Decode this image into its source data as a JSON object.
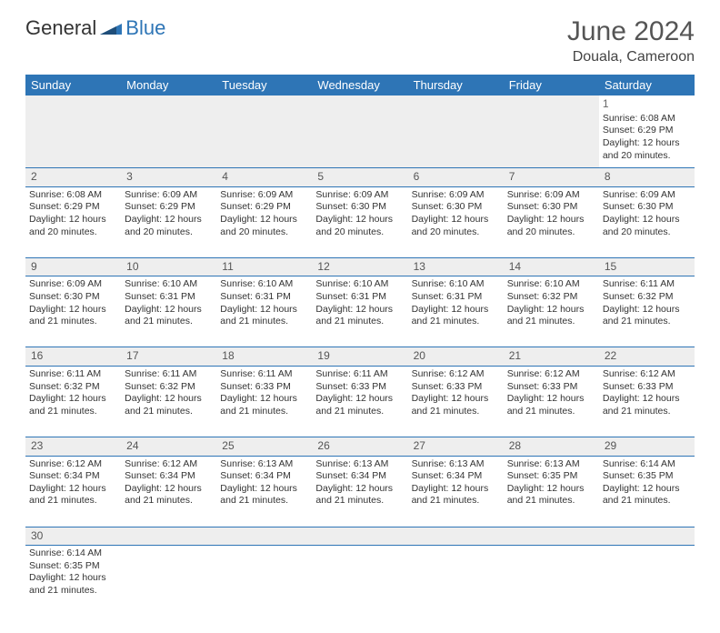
{
  "logo": {
    "text1": "General",
    "text2": "Blue"
  },
  "title": "June 2024",
  "location": "Douala, Cameroon",
  "colors": {
    "header_bg": "#2e75b6",
    "header_text": "#ffffff",
    "daynum_bg": "#eeeeee",
    "row_border": "#2e75b6",
    "title_color": "#555555",
    "body_text": "#333333"
  },
  "typography": {
    "title_fontsize": 30,
    "location_fontsize": 16,
    "weekday_fontsize": 13,
    "daynum_fontsize": 12,
    "cell_fontsize": 10.5
  },
  "weekdays": [
    "Sunday",
    "Monday",
    "Tuesday",
    "Wednesday",
    "Thursday",
    "Friday",
    "Saturday"
  ],
  "weeks": [
    [
      null,
      null,
      null,
      null,
      null,
      null,
      {
        "day": "1",
        "sunrise": "Sunrise: 6:08 AM",
        "sunset": "Sunset: 6:29 PM",
        "daylight": "Daylight: 12 hours and 20 minutes."
      }
    ],
    [
      {
        "day": "2",
        "sunrise": "Sunrise: 6:08 AM",
        "sunset": "Sunset: 6:29 PM",
        "daylight": "Daylight: 12 hours and 20 minutes."
      },
      {
        "day": "3",
        "sunrise": "Sunrise: 6:09 AM",
        "sunset": "Sunset: 6:29 PM",
        "daylight": "Daylight: 12 hours and 20 minutes."
      },
      {
        "day": "4",
        "sunrise": "Sunrise: 6:09 AM",
        "sunset": "Sunset: 6:29 PM",
        "daylight": "Daylight: 12 hours and 20 minutes."
      },
      {
        "day": "5",
        "sunrise": "Sunrise: 6:09 AM",
        "sunset": "Sunset: 6:30 PM",
        "daylight": "Daylight: 12 hours and 20 minutes."
      },
      {
        "day": "6",
        "sunrise": "Sunrise: 6:09 AM",
        "sunset": "Sunset: 6:30 PM",
        "daylight": "Daylight: 12 hours and 20 minutes."
      },
      {
        "day": "7",
        "sunrise": "Sunrise: 6:09 AM",
        "sunset": "Sunset: 6:30 PM",
        "daylight": "Daylight: 12 hours and 20 minutes."
      },
      {
        "day": "8",
        "sunrise": "Sunrise: 6:09 AM",
        "sunset": "Sunset: 6:30 PM",
        "daylight": "Daylight: 12 hours and 20 minutes."
      }
    ],
    [
      {
        "day": "9",
        "sunrise": "Sunrise: 6:09 AM",
        "sunset": "Sunset: 6:30 PM",
        "daylight": "Daylight: 12 hours and 21 minutes."
      },
      {
        "day": "10",
        "sunrise": "Sunrise: 6:10 AM",
        "sunset": "Sunset: 6:31 PM",
        "daylight": "Daylight: 12 hours and 21 minutes."
      },
      {
        "day": "11",
        "sunrise": "Sunrise: 6:10 AM",
        "sunset": "Sunset: 6:31 PM",
        "daylight": "Daylight: 12 hours and 21 minutes."
      },
      {
        "day": "12",
        "sunrise": "Sunrise: 6:10 AM",
        "sunset": "Sunset: 6:31 PM",
        "daylight": "Daylight: 12 hours and 21 minutes."
      },
      {
        "day": "13",
        "sunrise": "Sunrise: 6:10 AM",
        "sunset": "Sunset: 6:31 PM",
        "daylight": "Daylight: 12 hours and 21 minutes."
      },
      {
        "day": "14",
        "sunrise": "Sunrise: 6:10 AM",
        "sunset": "Sunset: 6:32 PM",
        "daylight": "Daylight: 12 hours and 21 minutes."
      },
      {
        "day": "15",
        "sunrise": "Sunrise: 6:11 AM",
        "sunset": "Sunset: 6:32 PM",
        "daylight": "Daylight: 12 hours and 21 minutes."
      }
    ],
    [
      {
        "day": "16",
        "sunrise": "Sunrise: 6:11 AM",
        "sunset": "Sunset: 6:32 PM",
        "daylight": "Daylight: 12 hours and 21 minutes."
      },
      {
        "day": "17",
        "sunrise": "Sunrise: 6:11 AM",
        "sunset": "Sunset: 6:32 PM",
        "daylight": "Daylight: 12 hours and 21 minutes."
      },
      {
        "day": "18",
        "sunrise": "Sunrise: 6:11 AM",
        "sunset": "Sunset: 6:33 PM",
        "daylight": "Daylight: 12 hours and 21 minutes."
      },
      {
        "day": "19",
        "sunrise": "Sunrise: 6:11 AM",
        "sunset": "Sunset: 6:33 PM",
        "daylight": "Daylight: 12 hours and 21 minutes."
      },
      {
        "day": "20",
        "sunrise": "Sunrise: 6:12 AM",
        "sunset": "Sunset: 6:33 PM",
        "daylight": "Daylight: 12 hours and 21 minutes."
      },
      {
        "day": "21",
        "sunrise": "Sunrise: 6:12 AM",
        "sunset": "Sunset: 6:33 PM",
        "daylight": "Daylight: 12 hours and 21 minutes."
      },
      {
        "day": "22",
        "sunrise": "Sunrise: 6:12 AM",
        "sunset": "Sunset: 6:33 PM",
        "daylight": "Daylight: 12 hours and 21 minutes."
      }
    ],
    [
      {
        "day": "23",
        "sunrise": "Sunrise: 6:12 AM",
        "sunset": "Sunset: 6:34 PM",
        "daylight": "Daylight: 12 hours and 21 minutes."
      },
      {
        "day": "24",
        "sunrise": "Sunrise: 6:12 AM",
        "sunset": "Sunset: 6:34 PM",
        "daylight": "Daylight: 12 hours and 21 minutes."
      },
      {
        "day": "25",
        "sunrise": "Sunrise: 6:13 AM",
        "sunset": "Sunset: 6:34 PM",
        "daylight": "Daylight: 12 hours and 21 minutes."
      },
      {
        "day": "26",
        "sunrise": "Sunrise: 6:13 AM",
        "sunset": "Sunset: 6:34 PM",
        "daylight": "Daylight: 12 hours and 21 minutes."
      },
      {
        "day": "27",
        "sunrise": "Sunrise: 6:13 AM",
        "sunset": "Sunset: 6:34 PM",
        "daylight": "Daylight: 12 hours and 21 minutes."
      },
      {
        "day": "28",
        "sunrise": "Sunrise: 6:13 AM",
        "sunset": "Sunset: 6:35 PM",
        "daylight": "Daylight: 12 hours and 21 minutes."
      },
      {
        "day": "29",
        "sunrise": "Sunrise: 6:14 AM",
        "sunset": "Sunset: 6:35 PM",
        "daylight": "Daylight: 12 hours and 21 minutes."
      }
    ],
    [
      {
        "day": "30",
        "sunrise": "Sunrise: 6:14 AM",
        "sunset": "Sunset: 6:35 PM",
        "daylight": "Daylight: 12 hours and 21 minutes."
      },
      null,
      null,
      null,
      null,
      null,
      null
    ]
  ]
}
